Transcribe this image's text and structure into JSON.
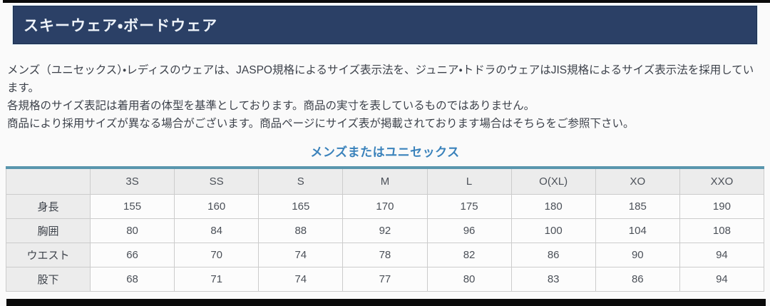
{
  "page": {
    "title": "スキーウェア・ボードウェア",
    "paragraphs": {
      "p1": "メンズ（ユニセックス）・レディスのウェアは、JASPO規格によるサイズ表示法を、ジュニア・トドラのウェアはJIS規格によるサイズ表示法を採用しています。",
      "p2": "各規格のサイズ表記は着用者の体型を基準としております。商品の実寸を表しているものではありません。",
      "p3": "商品により採用サイズが異なる場合がございます。商品ページにサイズ表が掲載されております場合はそちらをご参照下さい。"
    },
    "section_heading": "メンズまたはユニセックス"
  },
  "size_table": {
    "columns": [
      "",
      "3S",
      "SS",
      "S",
      "M",
      "L",
      "O(XL)",
      "XO",
      "XXO"
    ],
    "rows": [
      {
        "label": "身長",
        "values": [
          "155",
          "160",
          "165",
          "170",
          "175",
          "180",
          "185",
          "190"
        ]
      },
      {
        "label": "胸囲",
        "values": [
          "80",
          "84",
          "88",
          "92",
          "96",
          "100",
          "104",
          "108"
        ]
      },
      {
        "label": "ウエスト",
        "values": [
          "66",
          "70",
          "74",
          "78",
          "82",
          "86",
          "90",
          "94"
        ]
      },
      {
        "label": "股下",
        "values": [
          "68",
          "71",
          "74",
          "77",
          "80",
          "83",
          "86",
          "94"
        ]
      }
    ]
  },
  "colors": {
    "title_bar_bg": "#2b4066",
    "title_text": "#eef3f9",
    "section_heading_blue": "#3a82bb",
    "table_top_border": "#5996ad",
    "table_header_bg": "#ececec",
    "body_text": "#3d424b"
  }
}
